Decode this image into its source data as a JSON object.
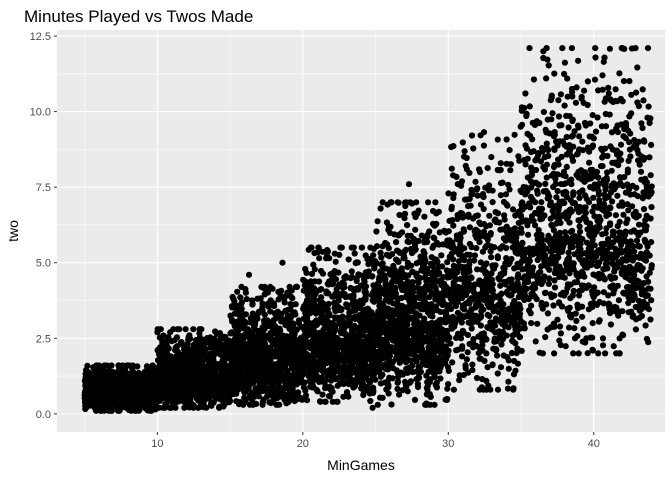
{
  "chart_data": {
    "type": "scatter",
    "title": "Minutes Played vs Twos Made",
    "xlabel": "MinGames",
    "ylabel": "two",
    "xlim": [
      3.1,
      44.9
    ],
    "ylim": [
      -0.6,
      12.7
    ],
    "x_ticks": [
      10,
      20,
      30,
      40
    ],
    "x_tick_labels": [
      "10",
      "20",
      "30",
      "40"
    ],
    "y_ticks": [
      0,
      2.5,
      5,
      7.5,
      10,
      12.5
    ],
    "y_tick_labels": [
      "0.0",
      "2.5",
      "5.0",
      "7.5",
      "10.0",
      "12.5"
    ],
    "grid": true,
    "background": "#ebebeb",
    "grid_major_color": "#ffffff",
    "point_color": "#000000",
    "point_count_estimate": 7000,
    "distribution_summary": [
      {
        "x_range": [
          5,
          10
        ],
        "y_low": 0.1,
        "y_high": 1.6,
        "y_center": 0.7
      },
      {
        "x_range": [
          10,
          15
        ],
        "y_low": 0.2,
        "y_high": 2.8,
        "y_center": 1.1
      },
      {
        "x_range": [
          15,
          20
        ],
        "y_low": 0.3,
        "y_high": 4.2,
        "y_center": 1.7
      },
      {
        "x_range": [
          20,
          25
        ],
        "y_low": 0.4,
        "y_high": 5.5,
        "y_center": 2.4
      },
      {
        "x_range": [
          25,
          30
        ],
        "y_low": 0.3,
        "y_high": 7.0,
        "y_center": 3.0
      },
      {
        "x_range": [
          30,
          35
        ],
        "y_low": 0.8,
        "y_high": 9.5,
        "y_center": 4.3
      },
      {
        "x_range": [
          35,
          44
        ],
        "y_low": 2.0,
        "y_high": 12.1,
        "y_center": 5.8
      }
    ],
    "highlighted_points": [
      {
        "x": 40.1,
        "y": 12.1
      },
      {
        "x": 40.6,
        "y": 11.2
      },
      {
        "x": 39.6,
        "y": 11.0
      },
      {
        "x": 35.3,
        "y": 10.6
      },
      {
        "x": 43.0,
        "y": 10.3
      },
      {
        "x": 38.0,
        "y": 10.2
      },
      {
        "x": 43.7,
        "y": 9.8
      },
      {
        "x": 41.1,
        "y": 9.9
      },
      {
        "x": 27.3,
        "y": 7.6
      },
      {
        "x": 24.8,
        "y": 0.2
      },
      {
        "x": 40.4,
        "y": 3.7
      },
      {
        "x": 39.3,
        "y": 2.8
      },
      {
        "x": 42.0,
        "y": 4.8
      },
      {
        "x": 5.8,
        "y": 1.6
      },
      {
        "x": 10.0,
        "y": 2.7
      },
      {
        "x": 12.2,
        "y": 2.6
      },
      {
        "x": 16.3,
        "y": 4.6
      },
      {
        "x": 18.6,
        "y": 5.0
      },
      {
        "x": 22.2,
        "y": 5.3
      }
    ]
  }
}
